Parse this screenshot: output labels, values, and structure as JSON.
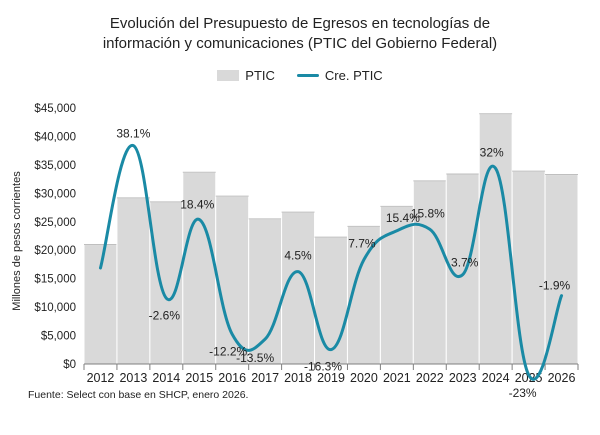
{
  "title_lines": [
    "Evolución del Presupuesto de Egresos en tecnologías de",
    "información y comunicaciones (PTIC del Gobierno Federal)"
  ],
  "source": "Fuente: Select con base en SHCP, enero 2026.",
  "colors": {
    "bar": "#d9d9d9",
    "bar_edge": "#bfbfbf",
    "line": "#1a8aa5",
    "text": "#222222"
  },
  "chart_data": {
    "type": "bar",
    "categories": [
      "2012",
      "2013",
      "2014",
      "2015",
      "2016",
      "2017",
      "2018",
      "2019",
      "2020",
      "2021",
      "2022",
      "2023",
      "2024",
      "2025",
      "2026"
    ],
    "series": [
      {
        "name": "PTIC",
        "type": "bar",
        "values": [
          21000,
          29200,
          28500,
          33700,
          29500,
          25500,
          26700,
          22300,
          24200,
          27700,
          32200,
          33400,
          44000,
          33900,
          33300
        ]
      },
      {
        "name": "Cre. PTIC",
        "type": "line",
        "axis": "secondary",
        "values": [
          null,
          38.1,
          -2.6,
          18.4,
          -12.2,
          -13.5,
          4.5,
          -16.3,
          7.7,
          15.4,
          15.8,
          3.7,
          32,
          -23,
          -1.9
        ],
        "labels": [
          "",
          "38.1%",
          "-2.6%",
          "18.4%",
          "-12.2%",
          "-13.5%",
          "4.5%",
          "-16.3%",
          "7.7%",
          "15.4%",
          "15.8%",
          "3.7%",
          "32%",
          "-23%",
          "-1.9%"
        ]
      }
    ],
    "ylabel": "Millones de pesos corrientes",
    "ylim": [
      0,
      45000
    ],
    "yticks": [
      "$0",
      "$5,000",
      "$10,000",
      "$15,000",
      "$20,000",
      "$25,000",
      "$30,000",
      "$35,000",
      "$40,000",
      "$45,000"
    ],
    "legend_position": "top",
    "grid": false
  }
}
